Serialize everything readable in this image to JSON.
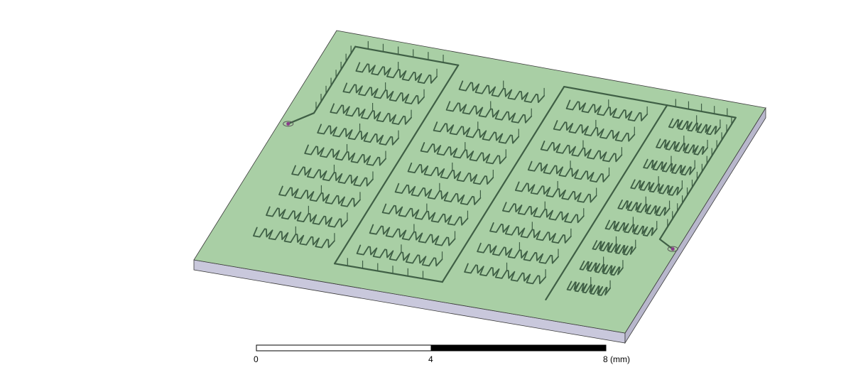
{
  "scene": {
    "board": {
      "top_color": "#a9cfa5",
      "side_color": "#c9c8dc",
      "edge_color": "#3a3a3a"
    },
    "trace_color": "#3f5f45",
    "trace_highlight": "#5f7f63",
    "port_color": "#8a3a8a",
    "ports": [
      {
        "id": "port-left"
      },
      {
        "id": "port-right"
      }
    ]
  },
  "scalebar": {
    "labels": [
      "0",
      "4",
      "8 (mm)"
    ],
    "fill_dark": "#000000",
    "fill_light": "#ffffff"
  }
}
